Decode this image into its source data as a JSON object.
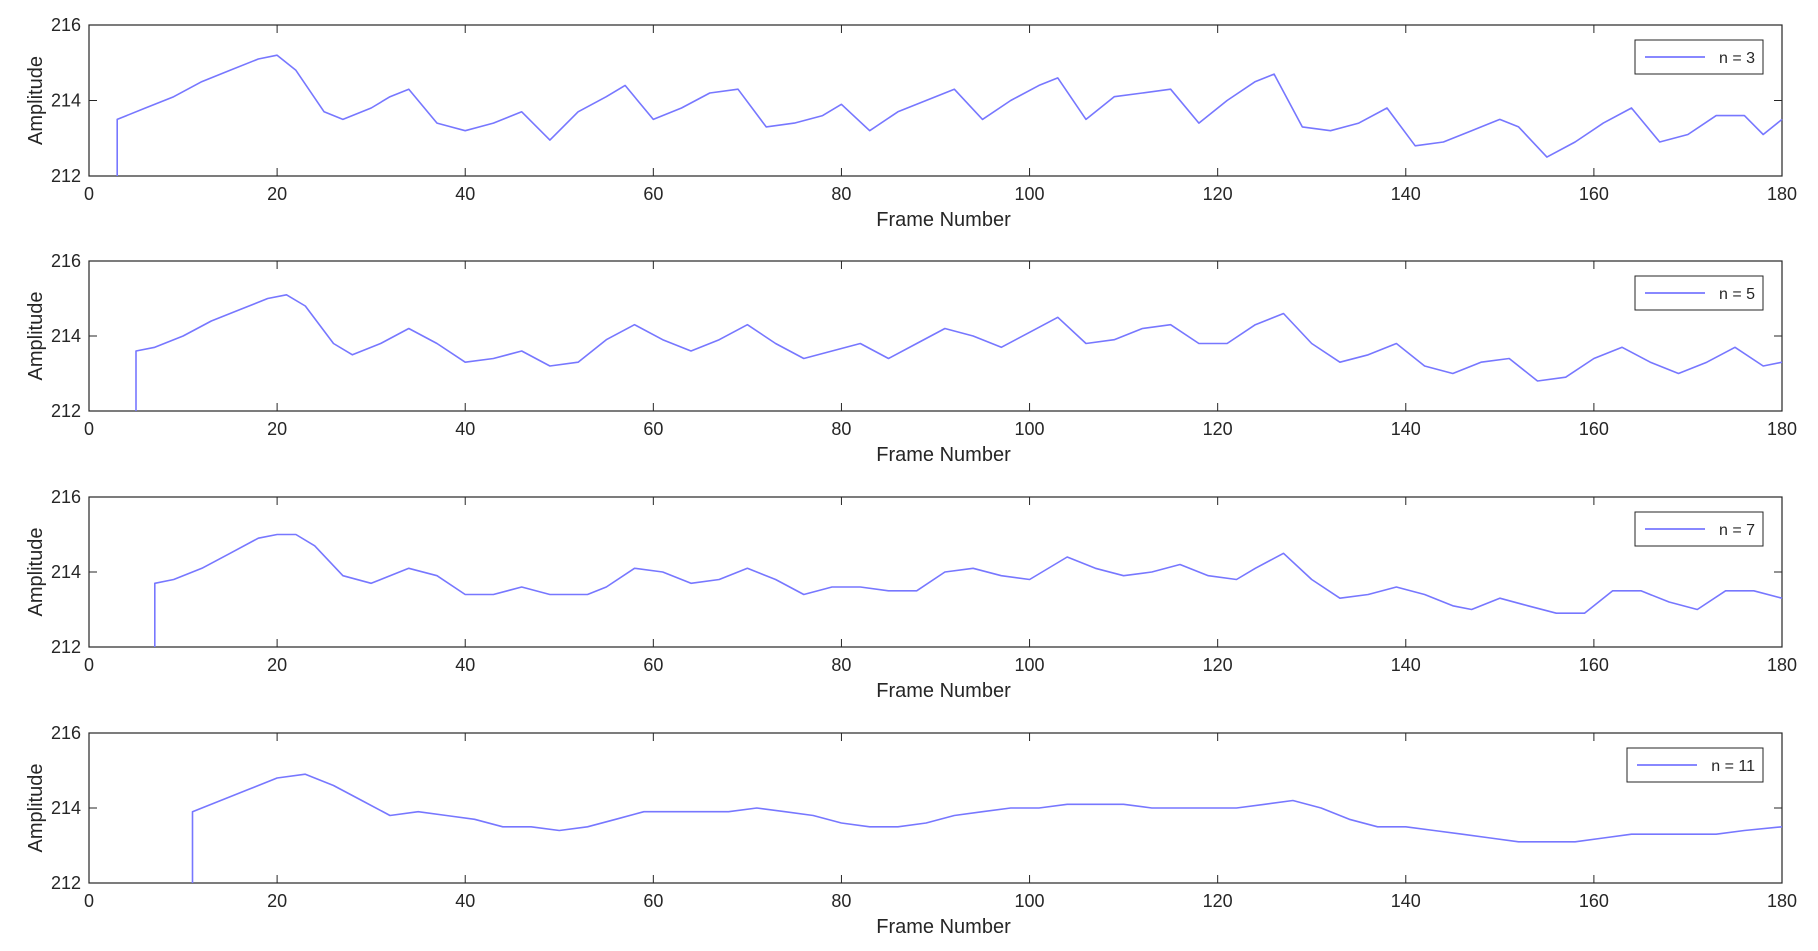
{
  "chart_data": [
    {
      "type": "line",
      "xlabel": "Frame Number",
      "ylabel": "Amplitude",
      "xlim": [
        0,
        180
      ],
      "ylim": [
        212,
        216
      ],
      "xticks": [
        0,
        20,
        40,
        60,
        80,
        100,
        120,
        140,
        160,
        180
      ],
      "yticks": [
        212,
        214,
        216
      ],
      "grid": false,
      "legend_position": "top-right",
      "series": [
        {
          "name": "n = 3",
          "color": "#7777ff",
          "x": [
            3,
            3,
            4,
            6,
            9,
            12,
            15,
            18,
            20,
            22,
            25,
            27,
            30,
            32,
            34,
            37,
            40,
            43,
            46,
            49,
            52,
            55,
            57,
            60,
            63,
            66,
            69,
            72,
            75,
            78,
            80,
            83,
            86,
            89,
            92,
            95,
            98,
            101,
            103,
            106,
            109,
            112,
            115,
            118,
            121,
            124,
            126,
            129,
            132,
            135,
            138,
            141,
            144,
            147,
            150,
            152,
            155,
            158,
            161,
            164,
            167,
            170,
            173,
            176,
            178,
            180
          ],
          "y": [
            212,
            213.5,
            213.6,
            213.8,
            214.1,
            214.5,
            214.8,
            215.1,
            215.2,
            214.8,
            213.7,
            213.5,
            213.8,
            214.1,
            214.3,
            213.4,
            213.2,
            213.4,
            213.7,
            212.95,
            213.7,
            214.1,
            214.4,
            213.5,
            213.8,
            214.2,
            214.3,
            213.3,
            213.4,
            213.6,
            213.9,
            213.2,
            213.7,
            214.0,
            214.3,
            213.5,
            214.0,
            214.4,
            214.6,
            213.5,
            214.1,
            214.2,
            214.3,
            213.4,
            214.0,
            214.5,
            214.7,
            213.3,
            213.2,
            213.4,
            213.8,
            212.8,
            212.9,
            213.2,
            213.5,
            213.3,
            212.5,
            212.9,
            213.4,
            213.8,
            212.9,
            213.1,
            213.6,
            213.6,
            213.1,
            213.5
          ]
        }
      ]
    },
    {
      "type": "line",
      "xlabel": "Frame Number",
      "ylabel": "Amplitude",
      "xlim": [
        0,
        180
      ],
      "ylim": [
        212,
        216
      ],
      "xticks": [
        0,
        20,
        40,
        60,
        80,
        100,
        120,
        140,
        160,
        180
      ],
      "yticks": [
        212,
        214,
        216
      ],
      "grid": false,
      "legend_position": "top-right",
      "series": [
        {
          "name": "n = 5",
          "color": "#7777ff",
          "x": [
            5,
            5,
            7,
            10,
            13,
            16,
            19,
            21,
            23,
            26,
            28,
            31,
            34,
            37,
            40,
            43,
            46,
            49,
            52,
            55,
            58,
            61,
            64,
            67,
            70,
            73,
            76,
            79,
            82,
            85,
            88,
            91,
            94,
            97,
            100,
            103,
            106,
            109,
            112,
            115,
            118,
            121,
            124,
            127,
            130,
            133,
            136,
            139,
            142,
            145,
            148,
            151,
            154,
            157,
            160,
            163,
            166,
            169,
            172,
            175,
            178,
            180
          ],
          "y": [
            212,
            213.6,
            213.7,
            214.0,
            214.4,
            214.7,
            215.0,
            215.1,
            214.8,
            213.8,
            213.5,
            213.8,
            214.2,
            213.8,
            213.3,
            213.4,
            213.6,
            213.2,
            213.3,
            213.9,
            214.3,
            213.9,
            213.6,
            213.9,
            214.3,
            213.8,
            213.4,
            213.6,
            213.8,
            213.4,
            213.8,
            214.2,
            214.0,
            213.7,
            214.1,
            214.5,
            213.8,
            213.9,
            214.2,
            214.3,
            213.8,
            213.8,
            214.3,
            214.6,
            213.8,
            213.3,
            213.5,
            213.8,
            213.2,
            213.0,
            213.3,
            213.4,
            212.8,
            212.9,
            213.4,
            213.7,
            213.3,
            213.0,
            213.3,
            213.7,
            213.2,
            213.3
          ]
        }
      ]
    },
    {
      "type": "line",
      "xlabel": "Frame Number",
      "ylabel": "Amplitude",
      "xlim": [
        0,
        180
      ],
      "ylim": [
        212,
        216
      ],
      "xticks": [
        0,
        20,
        40,
        60,
        80,
        100,
        120,
        140,
        160,
        180
      ],
      "yticks": [
        212,
        214,
        216
      ],
      "grid": false,
      "legend_position": "top-right",
      "series": [
        {
          "name": "n = 7",
          "color": "#7777ff",
          "x": [
            7,
            7,
            9,
            12,
            15,
            18,
            20,
            22,
            24,
            27,
            30,
            34,
            37,
            40,
            43,
            46,
            49,
            53,
            55,
            58,
            61,
            64,
            67,
            70,
            73,
            76,
            79,
            82,
            85,
            88,
            91,
            94,
            97,
            100,
            104,
            107,
            110,
            113,
            116,
            119,
            122,
            124,
            127,
            130,
            133,
            136,
            139,
            142,
            145,
            147,
            150,
            153,
            156,
            159,
            162,
            165,
            168,
            171,
            174,
            177,
            180
          ],
          "y": [
            212,
            213.7,
            213.8,
            214.1,
            214.5,
            214.9,
            215.0,
            215.0,
            214.7,
            213.9,
            213.7,
            214.1,
            213.9,
            213.4,
            213.4,
            213.6,
            213.4,
            213.4,
            213.6,
            214.1,
            214.0,
            213.7,
            213.8,
            214.1,
            213.8,
            213.4,
            213.6,
            213.6,
            213.5,
            213.5,
            214.0,
            214.1,
            213.9,
            213.8,
            214.4,
            214.1,
            213.9,
            214.0,
            214.2,
            213.9,
            213.8,
            214.1,
            214.5,
            213.8,
            213.3,
            213.4,
            213.6,
            213.4,
            213.1,
            213.0,
            213.3,
            213.1,
            212.9,
            212.9,
            213.5,
            213.5,
            213.2,
            213.0,
            213.5,
            213.5,
            213.3
          ]
        }
      ]
    },
    {
      "type": "line",
      "xlabel": "Frame Number",
      "ylabel": "Amplitude",
      "xlim": [
        0,
        180
      ],
      "ylim": [
        212,
        216
      ],
      "xticks": [
        0,
        20,
        40,
        60,
        80,
        100,
        120,
        140,
        160,
        180
      ],
      "yticks": [
        212,
        214,
        216
      ],
      "grid": false,
      "legend_position": "top-right",
      "series": [
        {
          "name": "n = 11",
          "color": "#7777ff",
          "x": [
            11,
            11,
            14,
            17,
            20,
            23,
            26,
            29,
            32,
            35,
            38,
            41,
            44,
            47,
            50,
            53,
            56,
            59,
            62,
            65,
            68,
            71,
            74,
            77,
            80,
            83,
            86,
            89,
            92,
            95,
            98,
            101,
            104,
            107,
            110,
            113,
            116,
            119,
            122,
            125,
            128,
            131,
            134,
            137,
            140,
            143,
            146,
            149,
            152,
            155,
            158,
            161,
            164,
            167,
            170,
            173,
            176,
            180
          ],
          "y": [
            212,
            213.9,
            214.2,
            214.5,
            214.8,
            214.9,
            214.6,
            214.2,
            213.8,
            213.9,
            213.8,
            213.7,
            213.5,
            213.5,
            213.4,
            213.5,
            213.7,
            213.9,
            213.9,
            213.9,
            213.9,
            214.0,
            213.9,
            213.8,
            213.6,
            213.5,
            213.5,
            213.6,
            213.8,
            213.9,
            214.0,
            214.0,
            214.1,
            214.1,
            214.1,
            214.0,
            214.0,
            214.0,
            214.0,
            214.1,
            214.2,
            214.0,
            213.7,
            213.5,
            213.5,
            213.4,
            213.3,
            213.2,
            213.1,
            213.1,
            213.1,
            213.2,
            213.3,
            213.3,
            213.3,
            213.3,
            213.4,
            213.5
          ]
        }
      ]
    }
  ]
}
